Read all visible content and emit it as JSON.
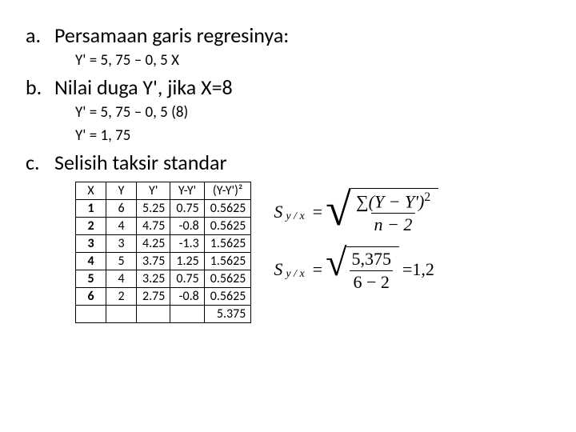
{
  "items": {
    "a": {
      "bullet": "a.",
      "heading": "Persamaan garis regresinya:",
      "sub1": "Y' = 5, 75 – 0, 5 X"
    },
    "b": {
      "bullet": "b.",
      "heading": "Nilai duga Y', jika X=8",
      "sub1": "Y' = 5, 75 – 0, 5 (8)",
      "sub2": "Y' = 1, 75"
    },
    "c": {
      "bullet": "c.",
      "heading": "Selisih taksir standar"
    }
  },
  "table": {
    "headers": [
      "X",
      "Y",
      "Y'",
      "Y-Y'",
      "(Y-Y')²"
    ],
    "rows": [
      [
        "1",
        "6",
        "5.25",
        "0.75",
        "0.5625"
      ],
      [
        "2",
        "4",
        "4.75",
        "-0.8",
        "0.5625"
      ],
      [
        "3",
        "3",
        "4.25",
        "-1.3",
        "1.5625"
      ],
      [
        "4",
        "5",
        "3.75",
        "1.25",
        "1.5625"
      ],
      [
        "5",
        "4",
        "3.25",
        "0.75",
        "0.5625"
      ],
      [
        "6",
        "2",
        "2.75",
        "-0.8",
        "0.5625"
      ]
    ],
    "total": "5.375"
  },
  "formula": {
    "lhs_S": "S",
    "lhs_sub": "y / x",
    "eq": "=",
    "sum": "∑",
    "num1a": "(Y − Y')",
    "num1_exp": "2",
    "den1": "n − 2",
    "num2": "5,375",
    "den2": "6 − 2",
    "result": "=1,2"
  }
}
